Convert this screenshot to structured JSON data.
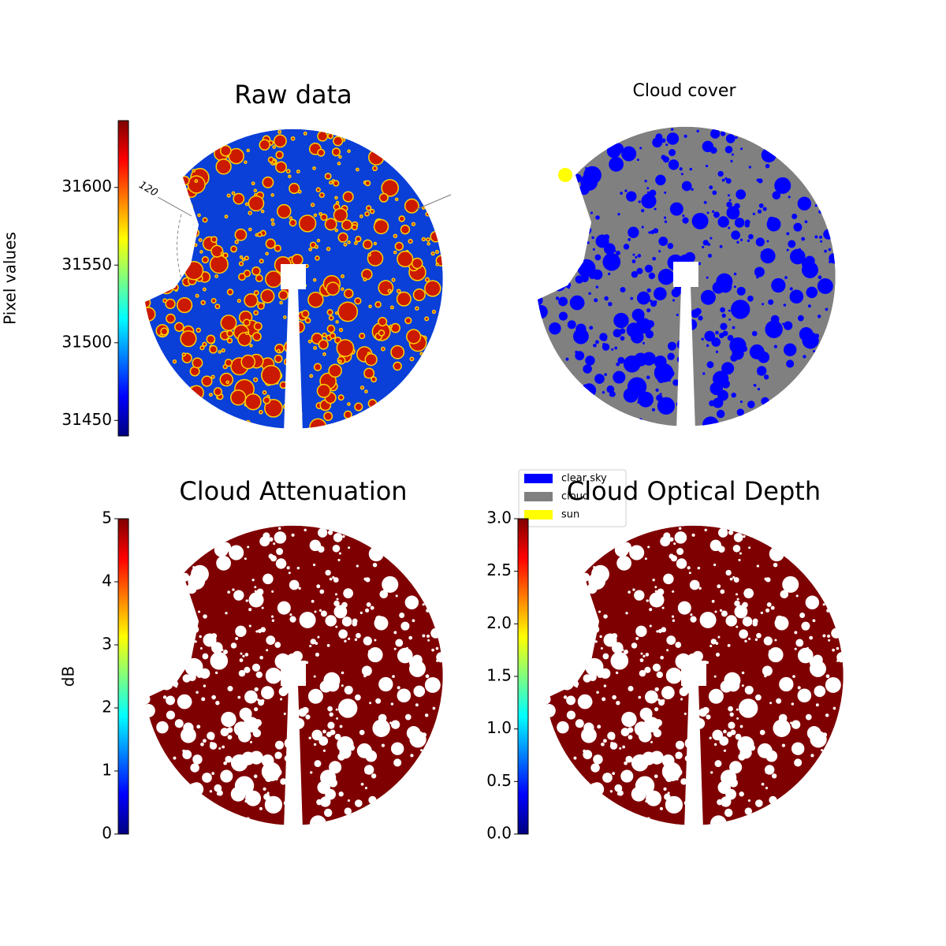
{
  "chart_data": [
    {
      "type": "image",
      "title": "Raw data",
      "cmap": "jet",
      "annotation": "120",
      "colorbar": {
        "label": "Pixel values",
        "lim": [
          31440,
          31643
        ],
        "ticks": [
          31450,
          31500,
          31550,
          31600
        ]
      }
    },
    {
      "type": "image",
      "title": "Cloud cover",
      "legend": [
        {
          "name": "clear sky",
          "color": "#0000ff"
        },
        {
          "name": "cloud",
          "color": "#808080"
        },
        {
          "name": "sun",
          "color": "#ffff00"
        }
      ]
    },
    {
      "type": "image",
      "title": "Cloud Attenuation",
      "cmap": "jet",
      "colorbar": {
        "label": "dB",
        "lim": [
          0,
          5
        ],
        "ticks": [
          0,
          1,
          2,
          3,
          4,
          5
        ]
      }
    },
    {
      "type": "image",
      "title": "Cloud Optical Depth",
      "cmap": "jet",
      "colorbar": {
        "lim": [
          0,
          3
        ],
        "ticks": [
          {
            "value": 0,
            "label": "0.0"
          },
          0.5,
          {
            "value": 1,
            "label": "1.0"
          },
          1.5,
          {
            "value": 2,
            "label": "2.0"
          },
          2.5,
          {
            "value": 3,
            "label": "3.0"
          }
        ]
      }
    }
  ]
}
